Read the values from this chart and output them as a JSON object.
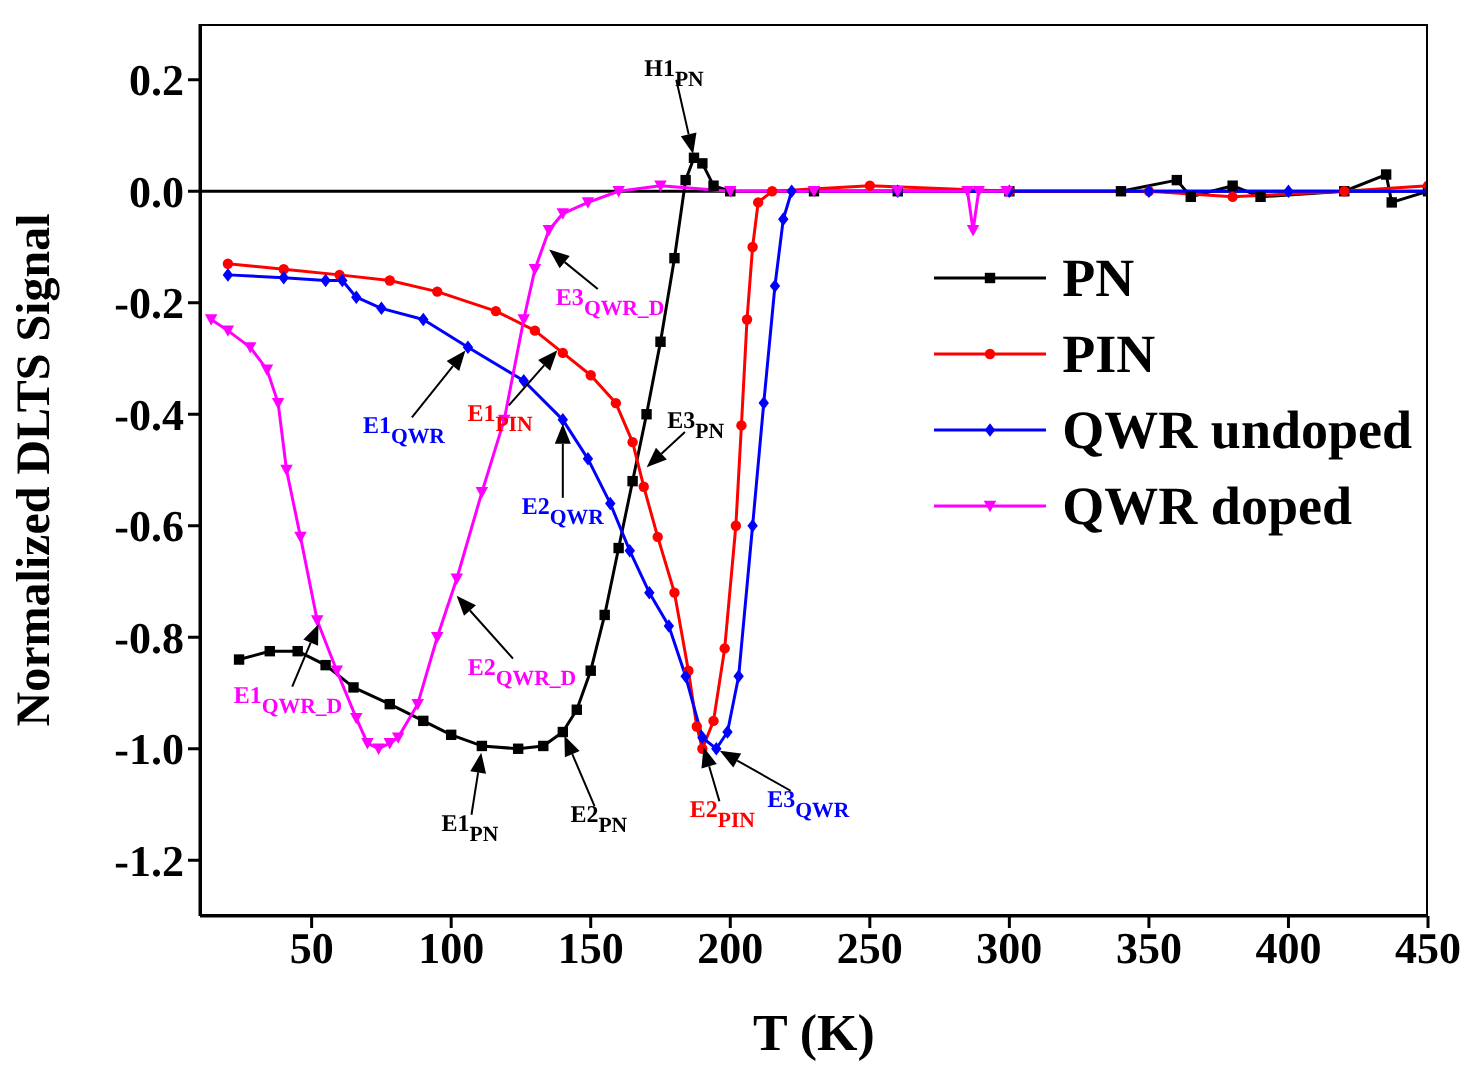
{
  "chart_data": {
    "type": "line",
    "xlabel": "T (K)",
    "ylabel": "Normalized DLTS Signal",
    "xlim": [
      10,
      450
    ],
    "xticks": [
      50,
      100,
      150,
      200,
      250,
      300,
      350,
      400,
      450
    ],
    "ylim": [
      -1.3,
      0.3
    ],
    "yticks": [
      {
        "value": 0.2,
        "label": "0.2"
      },
      {
        "value": 0,
        "label": "0.0"
      },
      {
        "value": -0.2,
        "label": "-0.2"
      },
      {
        "value": -0.4,
        "label": "-0.4"
      },
      {
        "value": -0.6,
        "label": "-0.6"
      },
      {
        "value": -0.8,
        "label": "-0.8"
      },
      {
        "value": -1.0,
        "label": "-1.0"
      },
      {
        "value": -1.2,
        "label": "-1.2"
      }
    ],
    "grid": false,
    "legend": "top right",
    "line_style": "solid",
    "ref_lines": [
      {
        "axis": "y",
        "value": 0,
        "color": "#000000"
      }
    ],
    "series": [
      {
        "name": "PN",
        "color": "#000000",
        "marker": "square",
        "x": [
          24,
          35,
          45,
          55,
          65,
          78,
          90,
          100,
          111,
          124,
          133,
          140,
          145,
          150,
          155,
          160,
          165,
          170,
          175,
          180,
          184,
          187,
          190,
          194,
          200,
          230,
          260,
          300,
          340,
          360,
          365,
          380,
          390,
          420,
          435,
          437,
          450
        ],
        "values": [
          -0.84,
          -0.825,
          -0.825,
          -0.85,
          -0.89,
          -0.92,
          -0.95,
          -0.975,
          -0.995,
          -1.0,
          -0.995,
          -0.97,
          -0.93,
          -0.86,
          -0.76,
          -0.64,
          -0.52,
          -0.4,
          -0.27,
          -0.12,
          0.02,
          0.06,
          0.05,
          0.01,
          0.0,
          0.0,
          0.0,
          0.0,
          0.0,
          0.02,
          -0.01,
          0.01,
          -0.01,
          0.0,
          0.03,
          -0.02,
          0.0
        ]
      },
      {
        "name": "PIN",
        "color": "#ff0000",
        "marker": "circle",
        "x": [
          20,
          40,
          60,
          78,
          95,
          116,
          130,
          140,
          150,
          159,
          165,
          169,
          174,
          180,
          185,
          188,
          190,
          194,
          198,
          202,
          204,
          206,
          208,
          210,
          215,
          250,
          300,
          350,
          380,
          420,
          450
        ],
        "values": [
          -0.13,
          -0.14,
          -0.15,
          -0.16,
          -0.18,
          -0.215,
          -0.25,
          -0.29,
          -0.33,
          -0.38,
          -0.45,
          -0.53,
          -0.62,
          -0.72,
          -0.86,
          -0.96,
          -1.0,
          -0.95,
          -0.82,
          -0.6,
          -0.42,
          -0.23,
          -0.1,
          -0.02,
          0.0,
          0.01,
          0.0,
          0.0,
          -0.01,
          0.0,
          0.01
        ]
      },
      {
        "name": "QWR undoped",
        "color": "#0000ff",
        "marker": "diamond",
        "x": [
          20,
          40,
          55,
          61,
          66,
          75,
          90,
          106,
          126,
          140,
          149,
          157,
          164,
          171,
          178,
          184,
          190,
          195,
          199,
          203,
          208,
          212,
          216,
          219,
          222,
          260,
          300,
          350,
          400,
          450
        ],
        "values": [
          -0.15,
          -0.155,
          -0.16,
          -0.16,
          -0.19,
          -0.21,
          -0.23,
          -0.28,
          -0.34,
          -0.41,
          -0.48,
          -0.56,
          -0.645,
          -0.72,
          -0.78,
          -0.87,
          -0.98,
          -1.0,
          -0.97,
          -0.87,
          -0.6,
          -0.38,
          -0.17,
          -0.05,
          0.0,
          0.0,
          0.0,
          0.0,
          0.0,
          0.0
        ]
      },
      {
        "name": "QWR doped",
        "color": "#ff00ff",
        "marker": "triangle",
        "x": [
          14,
          20,
          28,
          34,
          38,
          41,
          46,
          52,
          59,
          66,
          70,
          74,
          78,
          81,
          88,
          95,
          102,
          111,
          119,
          126,
          130,
          135,
          140,
          149,
          160,
          175,
          200,
          230,
          260,
          285,
          287,
          289,
          299
        ],
        "values": [
          -0.23,
          -0.25,
          -0.28,
          -0.32,
          -0.38,
          -0.5,
          -0.62,
          -0.77,
          -0.86,
          -0.945,
          -0.99,
          -1.0,
          -0.99,
          -0.98,
          -0.92,
          -0.8,
          -0.695,
          -0.54,
          -0.41,
          -0.23,
          -0.14,
          -0.07,
          -0.04,
          -0.02,
          0.0,
          0.01,
          0.0,
          0.0,
          0.0,
          0.0,
          -0.07,
          0.0,
          0.0
        ]
      }
    ],
    "annotations": [
      {
        "text": "H1$_{PN}$",
        "x": 187,
        "y": 0.06
      },
      {
        "text": "E3$_{QWR_D}$",
        "x": 134,
        "y": -0.1
      },
      {
        "text": "E1$_{QWR}$",
        "x": 106,
        "y": -0.28
      },
      {
        "text": "E1$_{PIN}$",
        "x": 139,
        "y": -0.28
      },
      {
        "text": "E2$_{QWR}$",
        "x": 140,
        "y": -0.41
      },
      {
        "text": "E3$_{PN}$",
        "x": 169,
        "y": -0.5
      },
      {
        "text": "E2$_{QWR_D}$",
        "x": 101,
        "y": -0.72
      },
      {
        "text": "E1$_{QWR_D}$",
        "x": 53,
        "y": -0.77
      },
      {
        "text": "E1$_{PN}$",
        "x": 111,
        "y": -1.0
      },
      {
        "text": "E2$_{PN}$",
        "x": 140,
        "y": -0.97
      },
      {
        "text": "E2$_{PIN}$",
        "x": 190,
        "y": -0.99
      },
      {
        "text": "E3$_{QWR}$",
        "x": 195,
        "y": -1.0
      }
    ]
  }
}
